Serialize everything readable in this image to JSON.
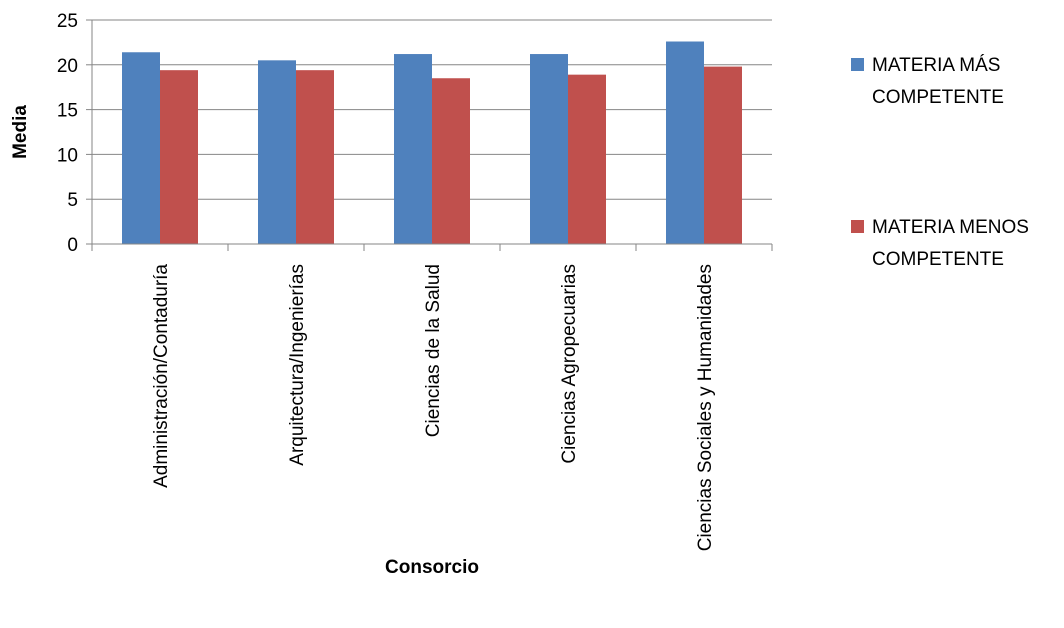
{
  "chart_data": {
    "type": "bar",
    "title": "",
    "xlabel": "Consorcio",
    "ylabel": "Media",
    "ylim": [
      0,
      25
    ],
    "yticks": [
      0,
      5,
      10,
      15,
      20,
      25
    ],
    "grid": true,
    "legend_position": "right",
    "categories": [
      "Administración/Contaduría",
      "Arquitectura/Ingenierías",
      "Ciencias de la Salud",
      "Ciencias Agropecuarias",
      "Ciencias Sociales y Humanidades"
    ],
    "series": [
      {
        "name": "MATERIA MÁS COMPETENTE",
        "legend_lines": [
          "MATERIA MÁS",
          "COMPETENTE"
        ],
        "color": "#4F81BD",
        "values": [
          21.4,
          20.5,
          21.2,
          21.2,
          22.6
        ]
      },
      {
        "name": "MATERIA MENOS COMPETENTE",
        "legend_lines": [
          "MATERIA MENOS",
          "COMPETENTE"
        ],
        "color": "#C0504D",
        "values": [
          19.4,
          19.4,
          18.5,
          18.9,
          19.8
        ]
      }
    ]
  }
}
